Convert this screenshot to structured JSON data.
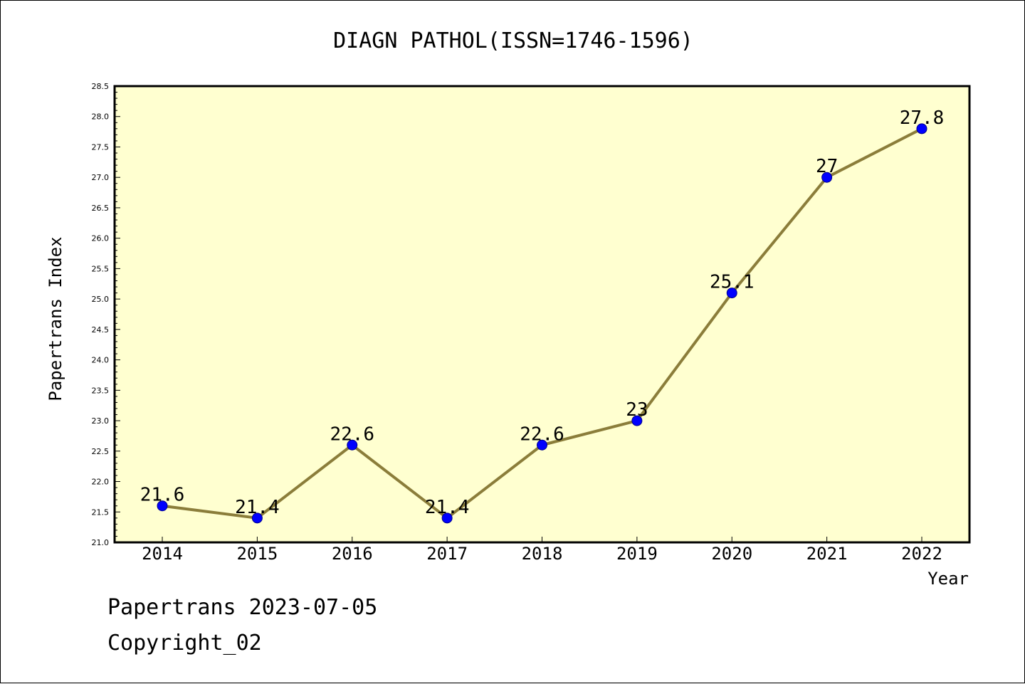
{
  "chart_data": {
    "type": "line",
    "title": "DIAGN PATHOL(ISSN=1746-1596)",
    "xlabel": "Year",
    "ylabel": "Papertrans Index",
    "categories": [
      "2014",
      "2015",
      "2016",
      "2017",
      "2018",
      "2019",
      "2020",
      "2021",
      "2022"
    ],
    "series": [
      {
        "values": [
          21.6,
          21.4,
          22.6,
          21.4,
          22.6,
          23,
          25.1,
          27,
          27.8
        ],
        "labels": [
          "21.6",
          "21.4",
          "22.6",
          "21.4",
          "22.6",
          "23",
          "25.1",
          "27",
          "27.8"
        ]
      }
    ],
    "ylim": [
      21.0,
      28.5
    ],
    "yticks": [
      "21.0",
      "21.5",
      "22.0",
      "22.5",
      "23.0",
      "23.5",
      "24.0",
      "24.5",
      "25.0",
      "25.5",
      "26.0",
      "26.5",
      "27.0",
      "27.5",
      "28.0",
      "28.5"
    ],
    "grid": false,
    "legend": "none",
    "colors": {
      "plot_background": "#ffffd0",
      "line": "#8b7d3a",
      "marker": "#0000ff"
    }
  },
  "footer": {
    "line1": "Papertrans 2023-07-05",
    "line2": "Copyright_02"
  }
}
